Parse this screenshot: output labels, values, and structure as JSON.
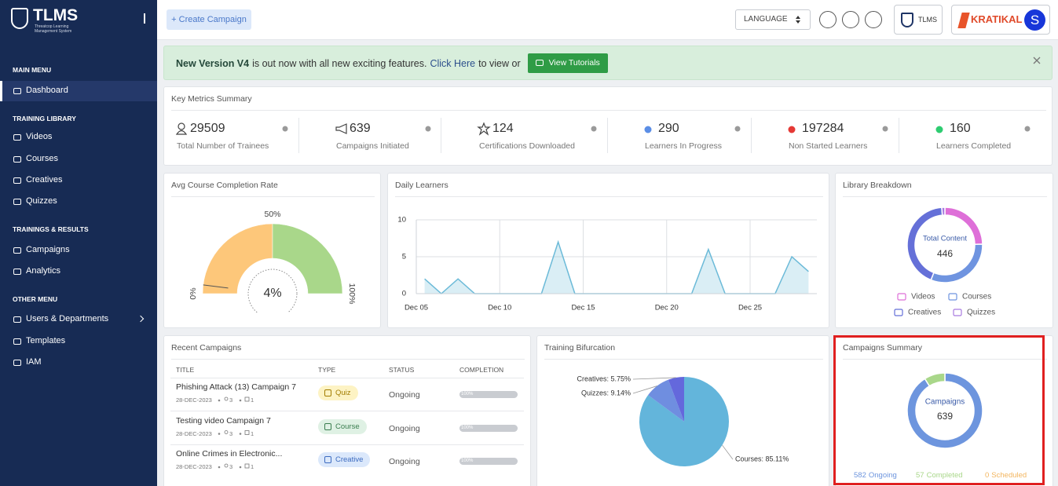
{
  "sidebar": {
    "brand": "TLMS",
    "tagline": "Threatcop Learning Management System",
    "menu": [
      {
        "title": "MAIN MENU",
        "items": [
          "Dashboard"
        ]
      },
      {
        "title": "TRAINING LIBRARY",
        "items": [
          "Videos",
          "Courses",
          "Creatives",
          "Quizzes"
        ]
      },
      {
        "title": "TRAININGS & RESULTS",
        "items": [
          "Campaigns",
          "Analytics"
        ]
      },
      {
        "title": "OTHER MENU",
        "items": [
          "Users & Departments",
          "Templates",
          "IAM"
        ]
      }
    ]
  },
  "topbar": {
    "create_button": "+ Create Campaign",
    "language": "LANGUAGE",
    "product": "TLMS",
    "partner": "KRATIKAL",
    "avatar": "S"
  },
  "banner": {
    "version": "New Version V4",
    "message": "is out now with all new exciting features.",
    "link": "Click Here",
    "suffix": "to view or",
    "button": "View Tutorials"
  },
  "metrics": {
    "title": "Key Metrics Summary",
    "items": [
      {
        "value": 29509,
        "label": "Total Number of Trainees"
      },
      {
        "value": 639,
        "label": "Campaigns Initiated"
      },
      {
        "value": 124,
        "label": "Certifications Downloaded"
      },
      {
        "value": 290,
        "label": "Learners In Progress",
        "color": "#5b8ee6"
      },
      {
        "value": 197284,
        "label": "Non Started Learners",
        "color": "#e53935"
      },
      {
        "value": 160,
        "label": "Learners Completed",
        "color": "#2ecc71"
      }
    ]
  },
  "completion_gauge": {
    "type": "gauge",
    "title": "Avg Course Completion Rate",
    "value": 4,
    "value_label": "4%",
    "range": [
      0,
      100
    ],
    "ticks": [
      {
        "value": 0,
        "label": "0%"
      },
      {
        "value": 50,
        "label": "50%"
      },
      {
        "value": 100,
        "label": "100%"
      }
    ],
    "bands": [
      {
        "from": 0,
        "to": 50,
        "color": "#fdc77a"
      },
      {
        "from": 50,
        "to": 100,
        "color": "#a9d78a"
      }
    ]
  },
  "daily_learners": {
    "type": "area",
    "title": "Daily Learners",
    "categories": [
      "Dec 05",
      null,
      null,
      null,
      null,
      "Dec 10",
      null,
      null,
      null,
      null,
      "Dec 15",
      null,
      null,
      null,
      null,
      "Dec 20",
      null,
      null,
      null,
      null,
      "Dec 25",
      null,
      null,
      null
    ],
    "values": [
      2,
      0,
      2,
      0,
      0,
      0,
      0,
      0,
      7,
      0,
      0,
      0,
      0,
      0,
      0,
      0,
      0,
      6,
      0,
      0,
      0,
      0,
      5,
      3
    ],
    "color": "#6bbad8",
    "ylim": [
      0,
      10
    ],
    "yticks": [
      0,
      5,
      10
    ],
    "grid": true
  },
  "library_breakdown": {
    "type": "donut",
    "title": "Library Breakdown",
    "center_label": "Total Content",
    "total": 446,
    "series": [
      {
        "name": "Videos",
        "value": 110,
        "color": "#de6fd8"
      },
      {
        "name": "Courses",
        "value": 140,
        "color": "#6f94e0"
      },
      {
        "name": "Creatives",
        "value": 190,
        "color": "#6570d8"
      },
      {
        "name": "Quizzes",
        "value": 6,
        "color": "#a97be0"
      }
    ]
  },
  "recent_campaigns": {
    "title": "Recent Campaigns",
    "columns": [
      "TITLE",
      "TYPE",
      "STATUS",
      "COMPLETION"
    ],
    "rows": [
      {
        "title": "Phishing Attack (13) Campaign 7",
        "date": "28-DEC-2023",
        "users": 3,
        "modules": 1,
        "type": "Quiz",
        "status": "Ongoing",
        "completion": 100,
        "completion_label": "100%"
      },
      {
        "title": "Testing video Campaign 7",
        "date": "28-DEC-2023",
        "users": 3,
        "modules": 1,
        "type": "Course",
        "status": "Ongoing",
        "completion": 100,
        "completion_label": "100%"
      },
      {
        "title": "Online Crimes in Electronic...",
        "date": "28-DEC-2023",
        "users": 3,
        "modules": 1,
        "type": "Creative",
        "status": "Ongoing",
        "completion": 100,
        "completion_label": "100%"
      }
    ]
  },
  "training_bifurcation": {
    "type": "pie",
    "title": "Training Bifurcation",
    "series": [
      {
        "value": 85.11,
        "value_label": "Courses: 85.11%",
        "color": "#63b5db"
      },
      {
        "value": 9.14,
        "value_label": "Quizzes: 9.14%",
        "color": "#6f8ee0"
      },
      {
        "value": 5.75,
        "value_label": "Creatives: 5.75%",
        "color": "#6468dc"
      }
    ]
  },
  "campaigns_summary": {
    "type": "donut",
    "title": "Campaigns Summary",
    "center_label": "Campaigns",
    "total": 639,
    "series": [
      {
        "name": "Ongoing",
        "value": 582,
        "color": "#6d95de"
      },
      {
        "name": "Completed",
        "value": 57,
        "color": "#a9d78a"
      },
      {
        "name": "Scheduled",
        "value": 0,
        "color": "#f3b55e"
      }
    ]
  }
}
